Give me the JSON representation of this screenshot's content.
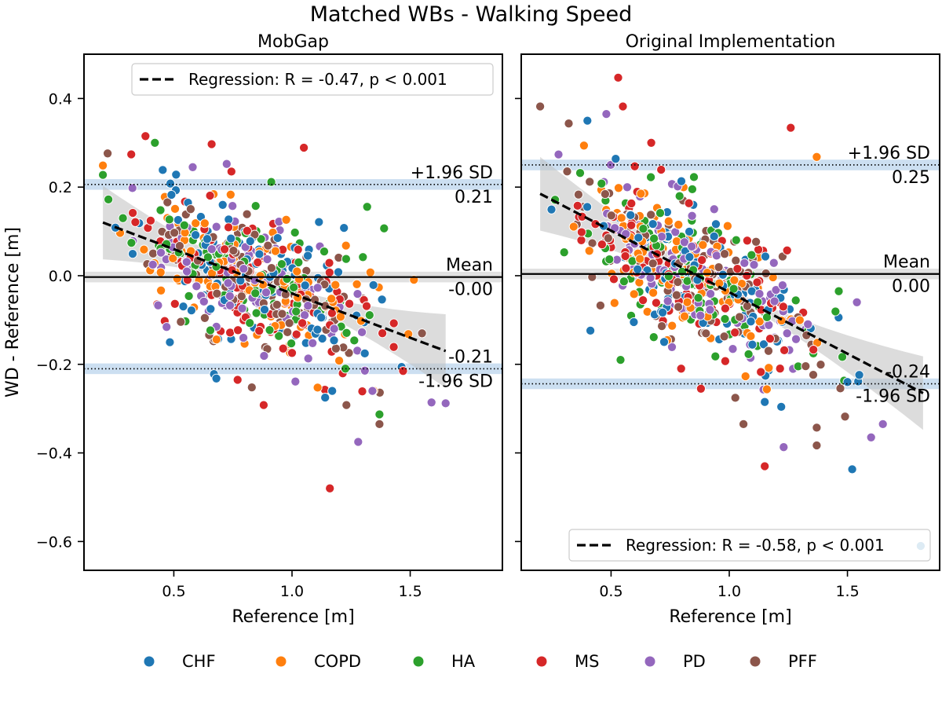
{
  "figure_title": "Matched WBs - Walking Speed",
  "legend": {
    "placement": "bottom-center",
    "entries": [
      {
        "name": "CHF",
        "color": "#1f77b4"
      },
      {
        "name": "COPD",
        "color": "#ff7f0e"
      },
      {
        "name": "HA",
        "color": "#2ca02c"
      },
      {
        "name": "MS",
        "color": "#d62728"
      },
      {
        "name": "PD",
        "color": "#9467bd"
      },
      {
        "name": "PFF",
        "color": "#8c564b"
      }
    ]
  },
  "chart_data": [
    {
      "type": "scatter",
      "title": "MobGap",
      "xlabel": "Reference [m]",
      "ylabel": "WD - Reference [m]",
      "xlim": [
        0.12,
        1.89
      ],
      "ylim": [
        -0.665,
        0.5
      ],
      "xticks": [
        0.5,
        1.0,
        1.5
      ],
      "yticks": [
        -0.6,
        -0.4,
        -0.2,
        0.0,
        0.2,
        0.4
      ],
      "xtick_labels": [
        "0.5",
        "1.0",
        "1.5"
      ],
      "ytick_labels": [
        "−0.6",
        "−0.4",
        "−0.2",
        "0.0",
        "0.2",
        "0.4"
      ],
      "mean": -0.003,
      "upper_loa": 0.206,
      "lower_loa": -0.21,
      "mean_label": "Mean",
      "mean_value_label": "-0.00",
      "upper_label": "+1.96 SD",
      "upper_value_label": "0.21",
      "lower_label": "-1.96 SD",
      "lower_value_label": "-0.21",
      "regression": {
        "label": "Regression: R = -0.47, p < 0.001",
        "x": [
          0.2,
          1.65
        ],
        "y": [
          0.12,
          -0.17
        ],
        "legend_placement": "top-right"
      },
      "points_per_group": 100,
      "x_center": 0.82,
      "x_spread": 0.24,
      "seed": 11,
      "outliers": [
        {
          "x": 0.38,
          "y": 0.315,
          "g": "MS"
        },
        {
          "x": 0.42,
          "y": 0.3,
          "g": "HA"
        },
        {
          "x": 0.66,
          "y": 0.297,
          "g": "MS"
        },
        {
          "x": 1.05,
          "y": 0.289,
          "g": "MS"
        },
        {
          "x": 0.22,
          "y": 0.276,
          "g": "PFF"
        },
        {
          "x": 0.32,
          "y": 0.274,
          "g": "MS"
        },
        {
          "x": 0.58,
          "y": 0.245,
          "g": "PD"
        },
        {
          "x": 1.22,
          "y": 0.108,
          "g": "CHF"
        },
        {
          "x": 1.3,
          "y": 0.042,
          "g": "HA"
        },
        {
          "x": 1.16,
          "y": -0.48,
          "g": "MS"
        },
        {
          "x": 1.28,
          "y": -0.375,
          "g": "PD"
        },
        {
          "x": 1.37,
          "y": -0.313,
          "g": "HA"
        },
        {
          "x": 1.37,
          "y": -0.335,
          "g": "PFF"
        },
        {
          "x": 1.59,
          "y": -0.286,
          "g": "PD"
        },
        {
          "x": 1.65,
          "y": -0.288,
          "g": "PD"
        },
        {
          "x": 0.88,
          "y": -0.292,
          "g": "MS"
        },
        {
          "x": 0.67,
          "y": -0.222,
          "g": "CHF"
        },
        {
          "x": 0.68,
          "y": -0.232,
          "g": "CHF"
        },
        {
          "x": 1.14,
          "y": -0.275,
          "g": "CHF"
        },
        {
          "x": 1.17,
          "y": -0.26,
          "g": "CHF"
        },
        {
          "x": 1.47,
          "y": -0.215,
          "g": "MS"
        },
        {
          "x": 1.34,
          "y": -0.26,
          "g": "PD"
        },
        {
          "x": 0.77,
          "y": -0.235,
          "g": "MS"
        },
        {
          "x": 0.83,
          "y": -0.252,
          "g": "PFF"
        },
        {
          "x": 1.23,
          "y": -0.292,
          "g": "PFF"
        },
        {
          "x": 1.55,
          "y": -0.13,
          "g": "PFF"
        }
      ]
    },
    {
      "type": "scatter",
      "title": "Original Implementation",
      "xlabel": "Reference [m]",
      "ylabel": "",
      "xlim": [
        0.12,
        1.89
      ],
      "ylim": [
        -0.665,
        0.5
      ],
      "xticks": [
        0.5,
        1.0,
        1.5
      ],
      "yticks": [
        -0.6,
        -0.4,
        -0.2,
        0.0,
        0.2,
        0.4
      ],
      "xtick_labels": [
        "0.5",
        "1.0",
        "1.5"
      ],
      "ytick_labels": [],
      "mean": 0.004,
      "upper_loa": 0.25,
      "lower_loa": -0.244,
      "mean_label": "Mean",
      "mean_value_label": "0.00",
      "upper_label": "+1.96 SD",
      "upper_value_label": "0.25",
      "lower_label": "-1.96 SD",
      "lower_value_label": "-0.24",
      "regression": {
        "label": "Regression: R = -0.58, p < 0.001",
        "x": [
          0.2,
          1.82
        ],
        "y": [
          0.185,
          -0.265
        ],
        "legend_placement": "bottom-right"
      },
      "points_per_group": 100,
      "x_center": 0.84,
      "x_spread": 0.24,
      "seed": 29,
      "outliers": [
        {
          "x": 0.53,
          "y": 0.447,
          "g": "MS"
        },
        {
          "x": 0.2,
          "y": 0.382,
          "g": "PFF"
        },
        {
          "x": 0.55,
          "y": 0.382,
          "g": "MS"
        },
        {
          "x": 0.4,
          "y": 0.35,
          "g": "CHF"
        },
        {
          "x": 0.48,
          "y": 0.365,
          "g": "PD"
        },
        {
          "x": 1.26,
          "y": 0.334,
          "g": "MS"
        },
        {
          "x": 0.67,
          "y": 0.3,
          "g": "MS"
        },
        {
          "x": 1.37,
          "y": 0.268,
          "g": "COPD"
        },
        {
          "x": 1.81,
          "y": -0.61,
          "g": "CHF"
        },
        {
          "x": 1.52,
          "y": -0.437,
          "g": "CHF"
        },
        {
          "x": 1.15,
          "y": -0.43,
          "g": "MS"
        },
        {
          "x": 1.23,
          "y": -0.387,
          "g": "PD"
        },
        {
          "x": 1.37,
          "y": -0.383,
          "g": "PFF"
        },
        {
          "x": 1.6,
          "y": -0.365,
          "g": "PD"
        },
        {
          "x": 1.65,
          "y": -0.335,
          "g": "PD"
        },
        {
          "x": 1.49,
          "y": -0.318,
          "g": "PFF"
        },
        {
          "x": 1.37,
          "y": -0.343,
          "g": "PFF"
        },
        {
          "x": 1.15,
          "y": -0.285,
          "g": "CHF"
        },
        {
          "x": 1.22,
          "y": -0.296,
          "g": "CHF"
        },
        {
          "x": 1.55,
          "y": -0.224,
          "g": "CHF"
        },
        {
          "x": 1.5,
          "y": -0.24,
          "g": "CHF"
        },
        {
          "x": 0.54,
          "y": -0.19,
          "g": "HA"
        },
        {
          "x": 0.88,
          "y": -0.255,
          "g": "MS"
        },
        {
          "x": 1.54,
          "y": -0.06,
          "g": "PD"
        },
        {
          "x": 1.06,
          "y": -0.335,
          "g": "PFF"
        }
      ]
    }
  ]
}
